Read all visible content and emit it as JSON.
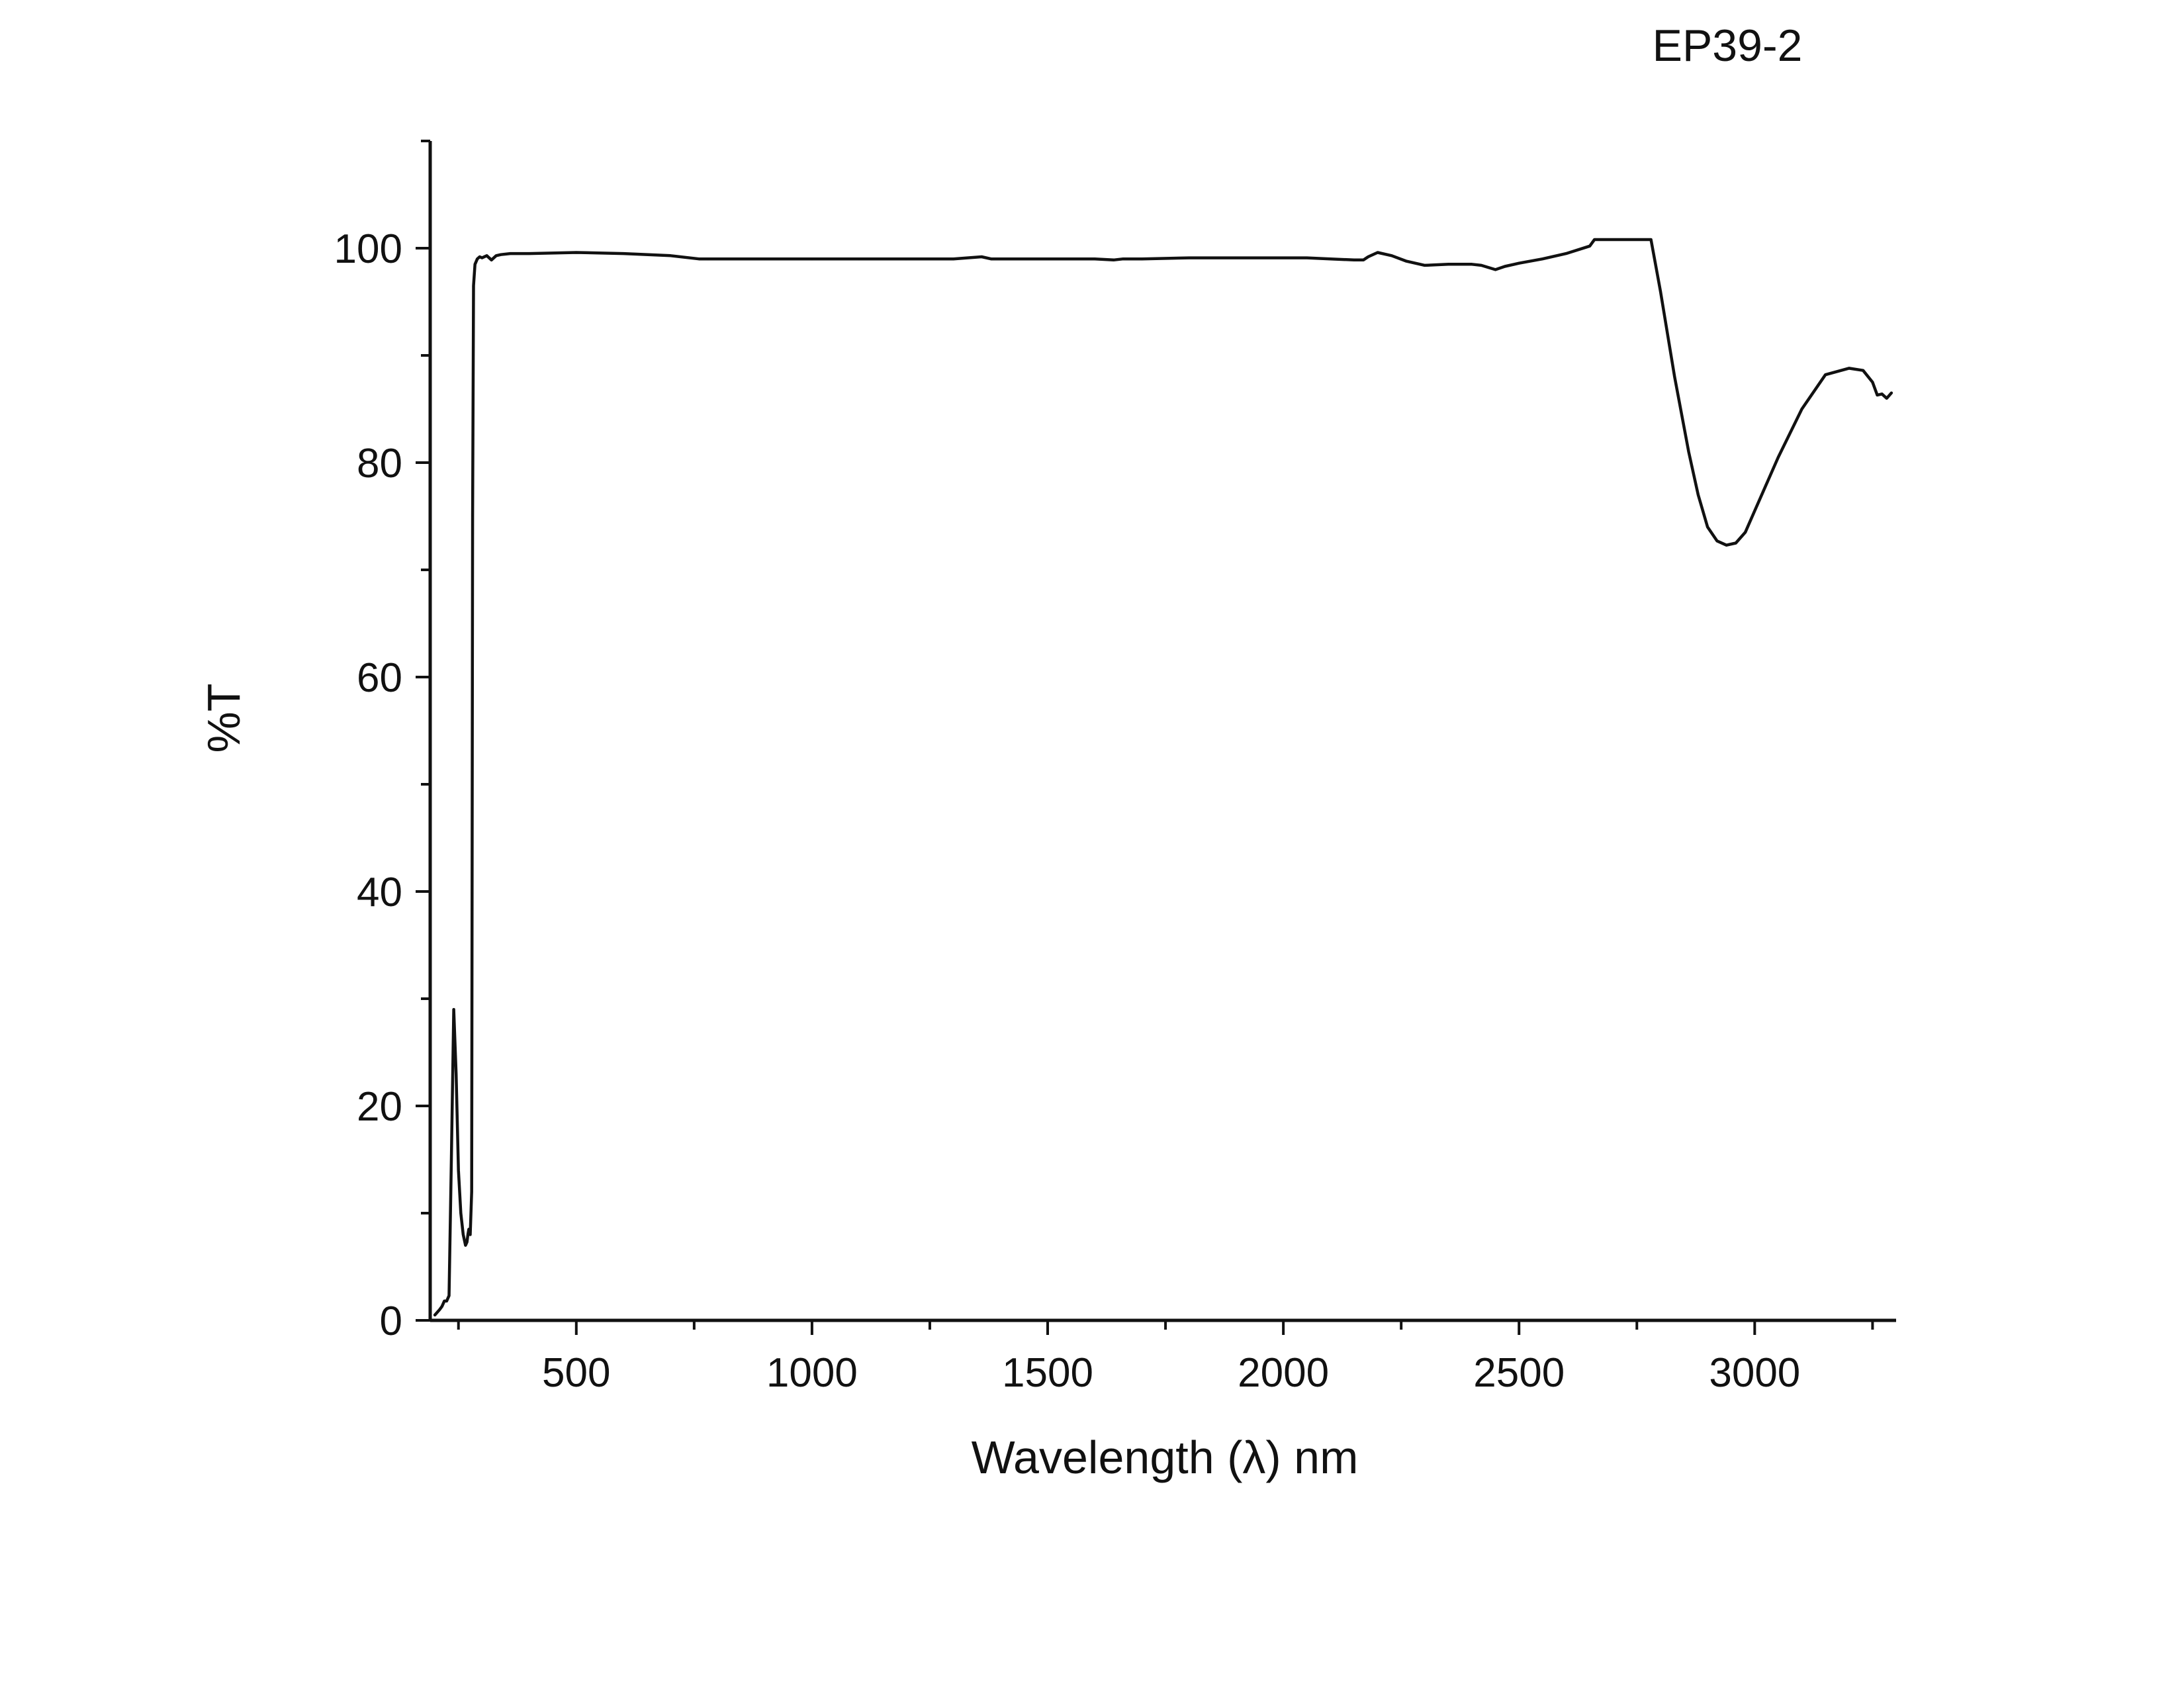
{
  "chart_data": {
    "type": "line",
    "title": "EP39-2",
    "xlabel": "Wavelength (λ) nm",
    "ylabel": "%T",
    "xlim": [
      190,
      3300
    ],
    "ylim": [
      0,
      110
    ],
    "x_ticks": [
      500,
      1000,
      1500,
      2000,
      2500,
      3000
    ],
    "x_tick_labels": [
      "500",
      "1000",
      "1500",
      "2000",
      "2500",
      "3000"
    ],
    "x_minor_ticks": [
      250,
      750,
      1250,
      1750,
      2250,
      2750,
      3250
    ],
    "y_ticks": [
      0,
      20,
      40,
      60,
      80,
      100
    ],
    "y_tick_labels": [
      "0",
      "20",
      "40",
      "60",
      "80",
      "100"
    ],
    "y_minor_ticks": [
      10,
      30,
      50,
      70,
      90,
      110
    ],
    "grid": false,
    "line_color": "#111111",
    "series": [
      {
        "x": [
          200,
          210,
          215,
          220,
          225,
          230,
          235,
          240,
          245,
          250,
          255,
          260,
          265,
          268,
          270,
          272,
          275,
          278,
          280,
          282,
          285,
          290,
          295,
          300,
          310,
          320,
          330,
          340,
          360,
          400,
          500,
          600,
          700,
          760,
          780,
          900,
          1000,
          1100,
          1200,
          1300,
          1360,
          1380,
          1500,
          1600,
          1640,
          1660,
          1700,
          1800,
          1900,
          2000,
          2050,
          2100,
          2150,
          2170,
          2180,
          2200,
          2230,
          2260,
          2300,
          2350,
          2400,
          2420,
          2450,
          2470,
          2500,
          2550,
          2600,
          2650,
          2660,
          2780,
          2800,
          2830,
          2860,
          2880,
          2900,
          2920,
          2940,
          2960,
          2980,
          3000,
          3050,
          3100,
          3150,
          3200,
          3230,
          3250,
          3260,
          3270,
          3280,
          3290
        ],
        "y": [
          0.5,
          1.0,
          1.3,
          1.8,
          1.8,
          2.3,
          15.0,
          29.0,
          23.0,
          14.0,
          10.0,
          8.0,
          7.0,
          7.3,
          8.0,
          8.5,
          8.0,
          12.0,
          75.0,
          96.5,
          98.5,
          99.0,
          99.2,
          99.1,
          99.3,
          98.9,
          99.3,
          99.4,
          99.5,
          99.5,
          99.6,
          99.5,
          99.3,
          99.0,
          99.0,
          99.0,
          99.0,
          99.0,
          99.0,
          99.0,
          99.2,
          99.0,
          99.0,
          99.0,
          98.9,
          99.0,
          99.0,
          99.1,
          99.1,
          99.1,
          99.1,
          99.0,
          98.9,
          98.9,
          99.2,
          99.6,
          99.3,
          98.8,
          98.4,
          98.5,
          98.5,
          98.4,
          98.0,
          98.3,
          98.6,
          99.0,
          99.5,
          100.2,
          100.8,
          100.8,
          96.0,
          88.0,
          81.0,
          77.0,
          74.0,
          72.7,
          72.3,
          72.5,
          73.5,
          75.5,
          80.5,
          85.0,
          88.2,
          88.8,
          88.6,
          87.5,
          86.3,
          86.4,
          86.0,
          86.5
        ]
      }
    ]
  }
}
